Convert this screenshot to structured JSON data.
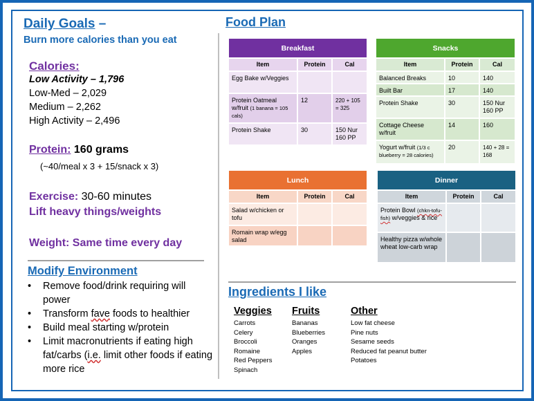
{
  "left": {
    "title": "Daily Goals",
    "title_dash": " –",
    "subtitle": "Burn more calories than you eat",
    "calories_head": "Calories:",
    "calories": [
      "Low Activity – 1,796",
      "Low-Med – 2,029",
      "Medium – 2,262",
      "High Activity – 2,496"
    ],
    "protein_key": "Protein:",
    "protein_value": " 160 grams",
    "protein_note": "(~40/meal x 3 + 15/snack x 3)",
    "exercise_key": "Exercise:",
    "exercise_value": " 30-60 minutes",
    "lift": "Lift heavy things/weights",
    "weight": "Weight: Same time every day",
    "modify_title": "Modify Environment",
    "modify_items": {
      "item1": "Remove food/drink requiring will power",
      "item2_a": "Transform ",
      "item2_b": "fave",
      "item2_c": " foods to healthier",
      "item3": "Build meal starting w/protein",
      "item4_a": "Limit macronutrients if eating high fat/carbs (",
      "item4_b": "i.e.",
      "item4_c": " limit other foods if eating more rice"
    }
  },
  "right": {
    "title": "Food Plan",
    "columns": {
      "item": "Item",
      "protein": "Protein",
      "cal": "Cal"
    },
    "breakfast": {
      "title": "Breakfast",
      "rows": [
        {
          "item": "Egg Bake w/Veggies",
          "protein": "",
          "cal": ""
        },
        {
          "item": "Protein Oatmeal w/fruit",
          "item_small": "(1 banana = 105 cals)",
          "protein": "12",
          "cal": "220 + 105 = 325"
        },
        {
          "item": "Protein Shake",
          "protein": "30",
          "cal": "150 Nur 160 PP"
        }
      ]
    },
    "snacks": {
      "title": "Snacks",
      "rows": [
        {
          "item": "Balanced Breaks",
          "protein": "10",
          "cal": "140"
        },
        {
          "item": "Built Bar",
          "protein": "17",
          "cal": "140"
        },
        {
          "item": "Protein Shake",
          "protein": "30",
          "cal": "150 Nur 160 PP"
        },
        {
          "item": "Cottage Cheese w/fruit",
          "protein": "14",
          "cal": "160"
        },
        {
          "item": "Yogurt w/fruit",
          "item_small": "(1/3 c blueberry = 28 calories)",
          "protein": "20",
          "cal": "140 + 28 = 168"
        }
      ]
    },
    "lunch": {
      "title": "Lunch",
      "rows": [
        {
          "item": "Salad w/chicken or tofu",
          "protein": "",
          "cal": ""
        },
        {
          "item": "Romain wrap w/egg salad",
          "protein": "",
          "cal": ""
        }
      ]
    },
    "dinner": {
      "title": "Dinner",
      "rows": [
        {
          "item_a": "Protein Bowl ",
          "item_small": "(chkn-tofu-fish)",
          "item_b": " w/veggies & rice",
          "protein": "",
          "cal": ""
        },
        {
          "item": "Healthy pizza w/whole wheat low-carb wrap",
          "protein": "",
          "cal": ""
        }
      ]
    },
    "ingredients_title": "Ingredients I like",
    "veggies": {
      "title": "Veggies",
      "items": [
        "Carrots",
        "Celery",
        "Broccoli",
        "Romaine",
        "Red Peppers",
        "Spinach"
      ]
    },
    "fruits": {
      "title": "Fruits",
      "items": [
        "Bananas",
        "Blueberries",
        "Oranges",
        "Apples"
      ]
    },
    "other": {
      "title": "Other",
      "items": [
        "Low fat cheese",
        "Pine nuts",
        "Sesame seeds",
        "Reduced fat peanut butter",
        "Potatoes"
      ]
    }
  },
  "colors": {
    "frame": "#1565b5",
    "heading_blue": "#1a6ab5",
    "purple": "#7030a0",
    "breakfast": "#7030a0",
    "snacks": "#4ea72e",
    "lunch": "#e97132",
    "dinner": "#1a6182"
  }
}
